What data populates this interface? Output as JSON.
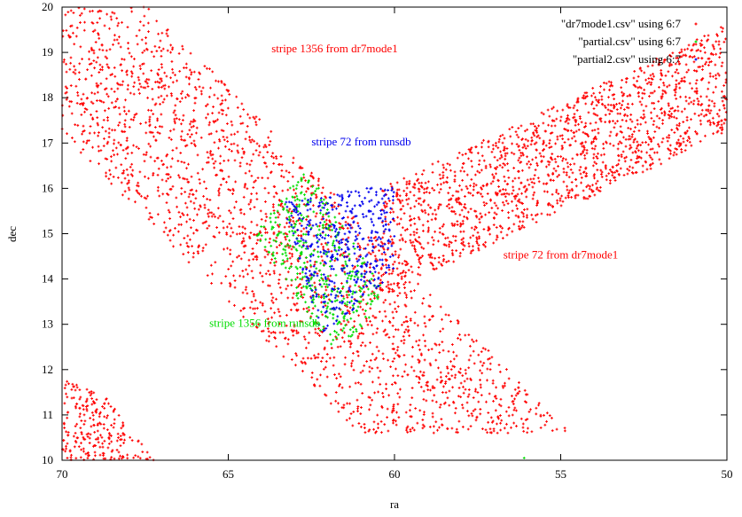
{
  "chart_data": {
    "type": "scatter",
    "xlabel": "ra",
    "ylabel": "dec",
    "xlim": [
      70,
      50
    ],
    "ylim": [
      10,
      20
    ],
    "xticks": [
      "70",
      "65",
      "60",
      "55",
      "50"
    ],
    "yticks": [
      "10",
      "11",
      "12",
      "13",
      "14",
      "15",
      "16",
      "17",
      "18",
      "19",
      "20"
    ],
    "grid": false,
    "legend_position": "top-right",
    "series": [
      {
        "name": "\"dr7mode1.csv\" using 6:7",
        "color": "#ff0000",
        "regions": [
          {
            "kind": "band",
            "from": [
              71.0,
              20.3
            ],
            "to": [
              57.9,
              10.6
            ],
            "half_width_ra": 3.2,
            "count": 2400
          },
          {
            "kind": "band",
            "from": [
              60.4,
              14.8
            ],
            "to": [
              49.5,
              18.6
            ],
            "half_width_dec": 1.2,
            "count": 1700
          },
          {
            "kind": "poly",
            "polygon": [
              [
                70,
                11.8
              ],
              [
                70,
                10.0
              ],
              [
                67.2,
                10.0
              ],
              [
                68.7,
                11.4
              ]
            ],
            "count": 230
          }
        ]
      },
      {
        "name": "\"partial.csv\" using 6:7",
        "color": "#00dd00",
        "regions": [
          {
            "kind": "poly",
            "polygon": [
              [
                62.7,
                16.5
              ],
              [
                64.2,
                15.0
              ],
              [
                61.8,
                12.3
              ],
              [
                60.2,
                13.6
              ]
            ],
            "count": 420
          },
          {
            "kind": "point",
            "x": 56.1,
            "y": 10.05
          }
        ]
      },
      {
        "name": "\"partial2.csv\" using 6:7",
        "color": "#0000ee",
        "regions": [
          {
            "kind": "poly",
            "polygon": [
              [
                63.4,
                15.7
              ],
              [
                60.0,
                16.1
              ],
              [
                60.0,
                14.0
              ],
              [
                62.2,
                12.8
              ]
            ],
            "count": 430
          }
        ]
      }
    ],
    "annotations": [
      {
        "text": "stripe 1356 from dr7mode1",
        "x": 61.8,
        "y": 19.0,
        "color": "#ff0000"
      },
      {
        "text": "stripe 72 from runsdb",
        "x": 61.0,
        "y": 16.95,
        "color": "#0000ee"
      },
      {
        "text": "stripe 72 from dr7mode1",
        "x": 55.0,
        "y": 14.45,
        "color": "#ff0000"
      },
      {
        "text": "stripe 1356 from runsdb",
        "x": 63.9,
        "y": 12.95,
        "color": "#00dd00"
      }
    ]
  }
}
